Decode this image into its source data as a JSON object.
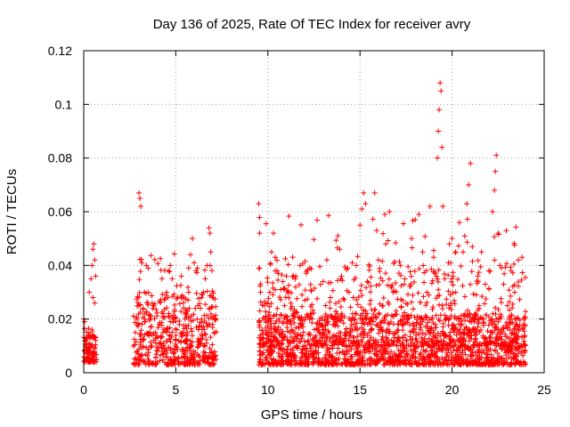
{
  "chart_data": {
    "type": "scatter",
    "title": "Day 136 of 2025, Rate Of TEC Index for receiver avry",
    "xlabel": "GPS time / hours",
    "ylabel": "ROTI / TECUs",
    "xlim": [
      0,
      25
    ],
    "ylim": [
      0,
      0.12
    ],
    "xticks": [
      0,
      5,
      10,
      15,
      20,
      25
    ],
    "yticks": [
      0,
      0.02,
      0.04,
      0.06,
      0.08,
      0.1,
      0.12
    ],
    "xtick_labels": [
      "0",
      "5",
      "10",
      "15",
      "20",
      "25"
    ],
    "ytick_labels": [
      "0",
      "0.02",
      "0.04",
      "0.06",
      "0.08",
      "0.1",
      "0.12"
    ],
    "grid": true,
    "marker": "+",
    "color": "#ff0000",
    "points": [
      [
        0.0,
        0.02
      ],
      [
        0.05,
        0.019
      ],
      [
        0.1,
        0.012
      ],
      [
        0.15,
        0.008
      ],
      [
        0.2,
        0.006
      ],
      [
        0.25,
        0.009
      ],
      [
        0.3,
        0.011
      ],
      [
        0.35,
        0.014
      ],
      [
        0.4,
        0.01
      ],
      [
        0.45,
        0.016
      ],
      [
        0.5,
        0.007
      ],
      [
        0.55,
        0.013
      ],
      [
        0.6,
        0.009
      ],
      [
        0.65,
        0.012
      ],
      [
        0.05,
        0.008
      ],
      [
        0.15,
        0.005
      ],
      [
        0.35,
        0.004
      ],
      [
        0.55,
        0.005
      ],
      [
        0.3,
        0.03
      ],
      [
        0.4,
        0.035
      ],
      [
        0.45,
        0.04
      ],
      [
        0.5,
        0.046
      ],
      [
        0.55,
        0.048
      ],
      [
        0.6,
        0.042
      ],
      [
        0.65,
        0.036
      ],
      [
        0.5,
        0.028
      ],
      [
        0.6,
        0.026
      ],
      [
        2.7,
        0.01
      ],
      [
        2.8,
        0.015
      ],
      [
        2.9,
        0.02
      ],
      [
        3.0,
        0.067
      ],
      [
        3.05,
        0.065
      ],
      [
        3.1,
        0.062
      ],
      [
        3.0,
        0.025
      ],
      [
        3.2,
        0.012
      ],
      [
        3.3,
        0.03
      ],
      [
        3.4,
        0.04
      ],
      [
        3.5,
        0.039
      ],
      [
        3.6,
        0.02
      ],
      [
        3.7,
        0.01
      ],
      [
        3.8,
        0.025
      ],
      [
        3.9,
        0.015
      ],
      [
        4.0,
        0.008
      ],
      [
        4.1,
        0.018
      ],
      [
        4.2,
        0.013
      ],
      [
        4.3,
        0.022
      ],
      [
        4.4,
        0.009
      ],
      [
        4.5,
        0.03
      ],
      [
        4.6,
        0.038
      ],
      [
        4.7,
        0.04
      ],
      [
        4.8,
        0.035
      ],
      [
        4.9,
        0.02
      ],
      [
        5.0,
        0.01
      ],
      [
        5.1,
        0.028
      ],
      [
        5.2,
        0.018
      ],
      [
        5.3,
        0.036
      ],
      [
        5.4,
        0.015
      ],
      [
        5.5,
        0.02
      ],
      [
        5.6,
        0.012
      ],
      [
        5.7,
        0.03
      ],
      [
        5.8,
        0.044
      ],
      [
        5.9,
        0.05
      ],
      [
        6.0,
        0.041
      ],
      [
        6.1,
        0.038
      ],
      [
        6.2,
        0.025
      ],
      [
        6.3,
        0.012
      ],
      [
        6.4,
        0.02
      ],
      [
        6.5,
        0.03
      ],
      [
        6.6,
        0.035
      ],
      [
        6.7,
        0.04
      ],
      [
        6.8,
        0.054
      ],
      [
        6.85,
        0.052
      ],
      [
        6.9,
        0.045
      ],
      [
        7.0,
        0.028
      ],
      [
        7.1,
        0.015
      ],
      [
        3.1,
        0.006
      ],
      [
        3.5,
        0.005
      ],
      [
        4.0,
        0.004
      ],
      [
        4.5,
        0.006
      ],
      [
        5.0,
        0.005
      ],
      [
        5.5,
        0.007
      ],
      [
        6.0,
        0.006
      ],
      [
        6.5,
        0.005
      ],
      [
        7.0,
        0.006
      ],
      [
        9.5,
        0.063
      ],
      [
        9.55,
        0.052
      ],
      [
        9.6,
        0.03
      ],
      [
        9.7,
        0.01
      ],
      [
        9.8,
        0.025
      ],
      [
        9.9,
        0.015
      ],
      [
        10.0,
        0.008
      ],
      [
        10.1,
        0.03
      ],
      [
        10.2,
        0.045
      ],
      [
        10.3,
        0.052
      ],
      [
        10.4,
        0.043
      ],
      [
        10.5,
        0.038
      ],
      [
        10.6,
        0.02
      ],
      [
        10.7,
        0.031
      ],
      [
        10.8,
        0.012
      ],
      [
        10.9,
        0.025
      ],
      [
        11.0,
        0.036
      ],
      [
        11.2,
        0.015
      ],
      [
        11.4,
        0.022
      ],
      [
        11.6,
        0.01
      ],
      [
        11.8,
        0.018
      ],
      [
        12.0,
        0.027
      ],
      [
        12.2,
        0.012
      ],
      [
        12.4,
        0.02
      ],
      [
        12.6,
        0.008
      ],
      [
        12.8,
        0.015
      ],
      [
        13.0,
        0.034
      ],
      [
        13.2,
        0.042
      ],
      [
        13.4,
        0.028
      ],
      [
        13.6,
        0.018
      ],
      [
        13.8,
        0.051
      ],
      [
        13.9,
        0.046
      ],
      [
        14.0,
        0.036
      ],
      [
        14.2,
        0.015
      ],
      [
        14.4,
        0.03
      ],
      [
        14.6,
        0.022
      ],
      [
        14.8,
        0.04
      ],
      [
        15.0,
        0.055
      ],
      [
        15.1,
        0.061
      ],
      [
        15.2,
        0.067
      ],
      [
        15.3,
        0.063
      ],
      [
        15.4,
        0.034
      ],
      [
        15.6,
        0.02
      ],
      [
        15.8,
        0.067
      ],
      [
        15.9,
        0.053
      ],
      [
        16.0,
        0.042
      ],
      [
        16.2,
        0.025
      ],
      [
        16.4,
        0.048
      ],
      [
        16.6,
        0.06
      ],
      [
        16.8,
        0.03
      ],
      [
        17.0,
        0.015
      ],
      [
        17.2,
        0.04
      ],
      [
        17.4,
        0.033
      ],
      [
        17.6,
        0.02
      ],
      [
        17.8,
        0.05
      ],
      [
        18.0,
        0.057
      ],
      [
        18.2,
        0.059
      ],
      [
        18.4,
        0.045
      ],
      [
        18.6,
        0.038
      ],
      [
        18.8,
        0.062
      ],
      [
        19.0,
        0.043
      ],
      [
        19.2,
        0.08
      ],
      [
        19.25,
        0.09
      ],
      [
        19.3,
        0.098
      ],
      [
        19.35,
        0.108
      ],
      [
        19.4,
        0.105
      ],
      [
        19.45,
        0.084
      ],
      [
        19.5,
        0.062
      ],
      [
        19.6,
        0.035
      ],
      [
        19.8,
        0.041
      ],
      [
        20.0,
        0.05
      ],
      [
        20.2,
        0.03
      ],
      [
        20.4,
        0.056
      ],
      [
        20.6,
        0.045
      ],
      [
        20.8,
        0.063
      ],
      [
        20.9,
        0.07
      ],
      [
        21.0,
        0.078
      ],
      [
        21.1,
        0.047
      ],
      [
        21.2,
        0.02
      ],
      [
        21.4,
        0.036
      ],
      [
        21.6,
        0.045
      ],
      [
        21.8,
        0.033
      ],
      [
        22.0,
        0.038
      ],
      [
        22.2,
        0.06
      ],
      [
        22.3,
        0.068
      ],
      [
        22.35,
        0.075
      ],
      [
        22.4,
        0.081
      ],
      [
        22.5,
        0.052
      ],
      [
        22.6,
        0.04
      ],
      [
        22.8,
        0.033
      ],
      [
        23.0,
        0.025
      ],
      [
        23.2,
        0.038
      ],
      [
        23.4,
        0.03
      ],
      [
        23.6,
        0.042
      ],
      [
        23.8,
        0.043
      ],
      [
        23.9,
        0.02
      ],
      [
        9.6,
        0.005
      ],
      [
        10.5,
        0.004
      ],
      [
        11.5,
        0.006
      ],
      [
        12.5,
        0.005
      ],
      [
        13.5,
        0.004
      ],
      [
        14.5,
        0.006
      ],
      [
        15.5,
        0.005
      ],
      [
        16.5,
        0.004
      ],
      [
        17.5,
        0.006
      ],
      [
        18.5,
        0.005
      ],
      [
        19.5,
        0.004
      ],
      [
        20.5,
        0.006
      ],
      [
        21.5,
        0.005
      ],
      [
        22.5,
        0.004
      ],
      [
        23.5,
        0.006
      ]
    ],
    "point_bands": [
      {
        "x": [
          0.0,
          0.7
        ],
        "y": [
          0.004,
          0.017
        ],
        "count": 80
      },
      {
        "x": [
          2.7,
          7.2
        ],
        "y": [
          0.003,
          0.03
        ],
        "count": 420
      },
      {
        "x": [
          3.0,
          7.0
        ],
        "y": [
          0.01,
          0.045
        ],
        "count": 90
      },
      {
        "x": [
          9.5,
          24.0
        ],
        "y": [
          0.003,
          0.022
        ],
        "count": 1500
      },
      {
        "x": [
          9.5,
          24.0
        ],
        "y": [
          0.01,
          0.042
        ],
        "count": 550
      },
      {
        "x": [
          9.5,
          24.0
        ],
        "y": [
          0.02,
          0.06
        ],
        "count": 140
      }
    ]
  }
}
